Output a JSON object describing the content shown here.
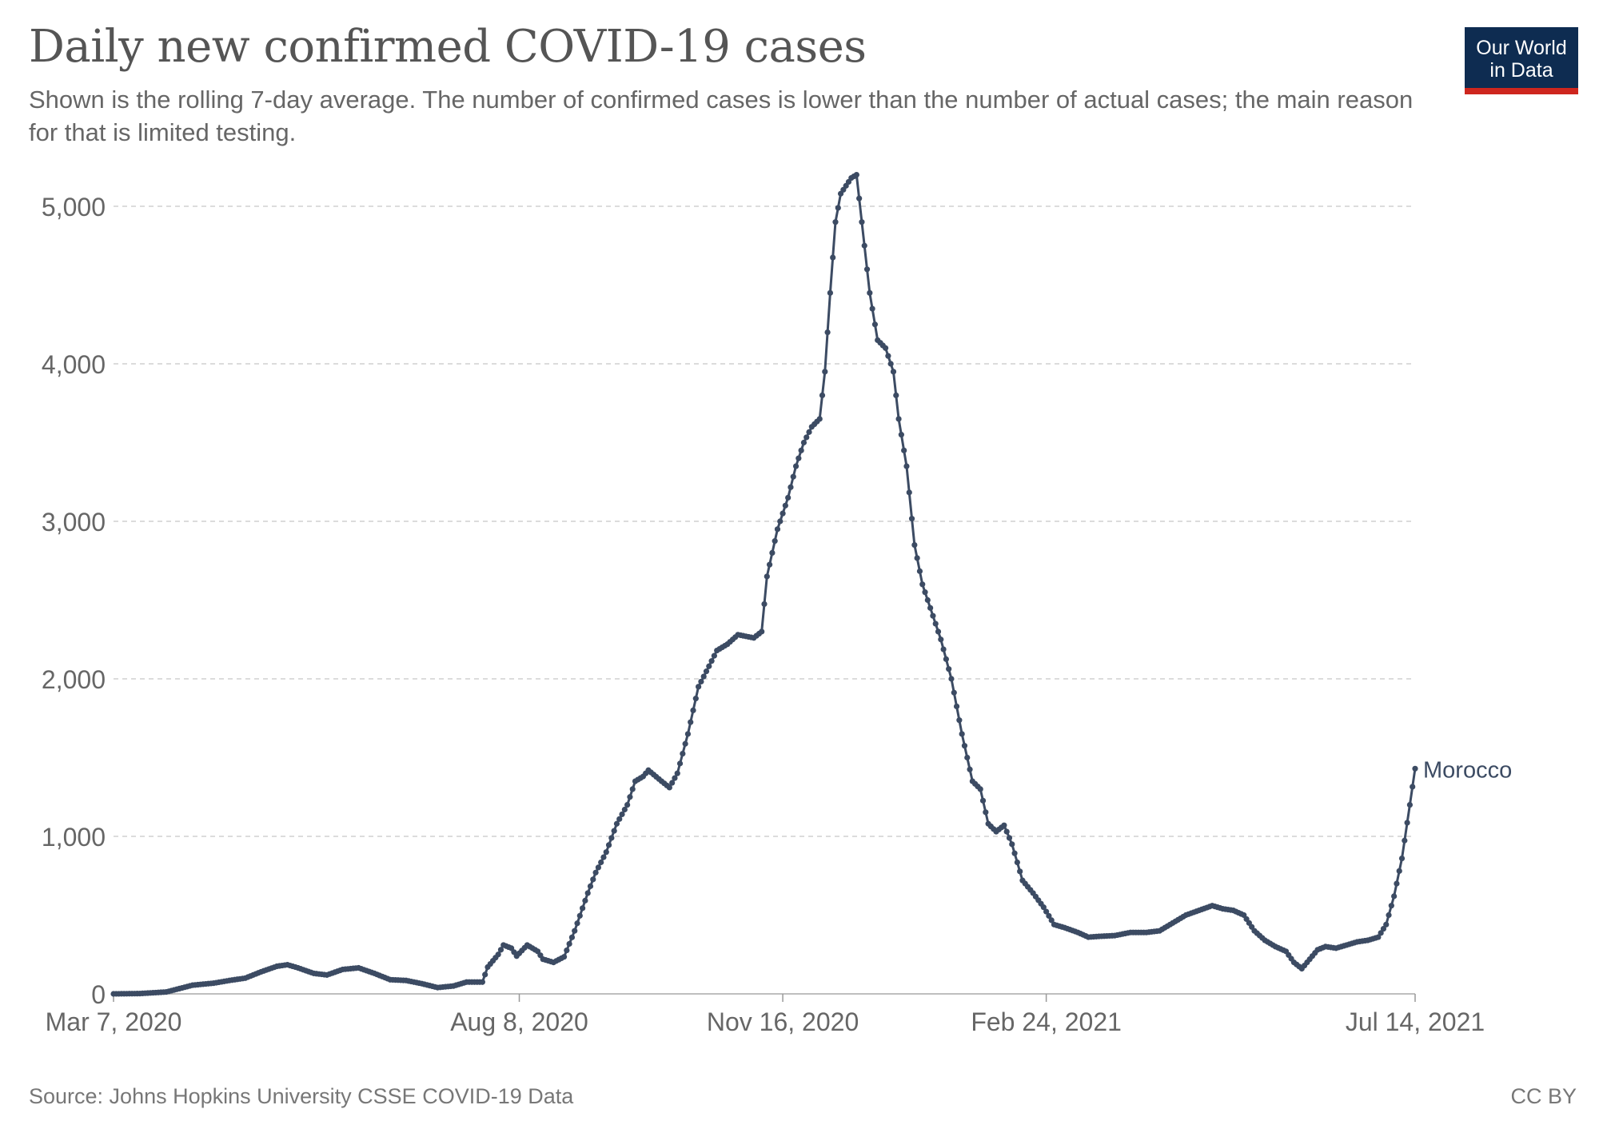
{
  "chart_data": {
    "type": "line",
    "title": "Daily new confirmed COVID-19 cases",
    "subtitle": "Shown is the rolling 7-day average. The number of confirmed cases is lower than the number of actual cases; the main reason for that is limited testing.",
    "source": "Source: Johns Hopkins University CSSE COVID-19 Data",
    "license": "CC BY",
    "logo": {
      "line1": "Our World",
      "line2": "in Data"
    },
    "x_start": "2020-03-07",
    "x_end": "2021-07-14",
    "x_ticks": [
      {
        "date": "2020-03-07",
        "label": "Mar 7, 2020"
      },
      {
        "date": "2020-08-08",
        "label": "Aug 8, 2020"
      },
      {
        "date": "2020-11-16",
        "label": "Nov 16, 2020"
      },
      {
        "date": "2021-02-24",
        "label": "Feb 24, 2021"
      },
      {
        "date": "2021-07-14",
        "label": "Jul 14, 2021"
      }
    ],
    "y_ticks": [
      {
        "value": 0,
        "label": "0"
      },
      {
        "value": 1000,
        "label": "1,000"
      },
      {
        "value": 2000,
        "label": "2,000"
      },
      {
        "value": 3000,
        "label": "3,000"
      },
      {
        "value": 4000,
        "label": "4,000"
      },
      {
        "value": 5000,
        "label": "5,000"
      }
    ],
    "ylim": [
      0,
      5200
    ],
    "grid": "horizontal dashed",
    "series": [
      {
        "name": "Morocco",
        "color": "#3c4b63",
        "points": [
          [
            "2020-03-07",
            0
          ],
          [
            "2020-03-17",
            2
          ],
          [
            "2020-03-27",
            12
          ],
          [
            "2020-04-06",
            55
          ],
          [
            "2020-04-14",
            68
          ],
          [
            "2020-04-20",
            85
          ],
          [
            "2020-04-26",
            100
          ],
          [
            "2020-05-02",
            140
          ],
          [
            "2020-05-08",
            175
          ],
          [
            "2020-05-12",
            185
          ],
          [
            "2020-05-16",
            165
          ],
          [
            "2020-05-22",
            130
          ],
          [
            "2020-05-27",
            120
          ],
          [
            "2020-06-02",
            155
          ],
          [
            "2020-06-08",
            165
          ],
          [
            "2020-06-14",
            130
          ],
          [
            "2020-06-20",
            90
          ],
          [
            "2020-06-26",
            85
          ],
          [
            "2020-07-02",
            65
          ],
          [
            "2020-07-08",
            40
          ],
          [
            "2020-07-14",
            50
          ],
          [
            "2020-07-19",
            75
          ],
          [
            "2020-07-25",
            75
          ],
          [
            "2020-07-27",
            170
          ],
          [
            "2020-07-31",
            250
          ],
          [
            "2020-08-02",
            310
          ],
          [
            "2020-08-05",
            290
          ],
          [
            "2020-08-07",
            240
          ],
          [
            "2020-08-11",
            310
          ],
          [
            "2020-08-15",
            270
          ],
          [
            "2020-08-17",
            220
          ],
          [
            "2020-08-21",
            200
          ],
          [
            "2020-08-25",
            235
          ],
          [
            "2020-08-29",
            400
          ],
          [
            "2020-09-03",
            640
          ],
          [
            "2020-09-06",
            770
          ],
          [
            "2020-09-10",
            900
          ],
          [
            "2020-09-14",
            1080
          ],
          [
            "2020-09-18",
            1200
          ],
          [
            "2020-09-21",
            1350
          ],
          [
            "2020-09-24",
            1380
          ],
          [
            "2020-09-26",
            1420
          ],
          [
            "2020-10-01",
            1350
          ],
          [
            "2020-10-04",
            1310
          ],
          [
            "2020-10-07",
            1400
          ],
          [
            "2020-10-11",
            1650
          ],
          [
            "2020-10-15",
            1950
          ],
          [
            "2020-10-19",
            2080
          ],
          [
            "2020-10-22",
            2180
          ],
          [
            "2020-10-26",
            2220
          ],
          [
            "2020-10-30",
            2280
          ],
          [
            "2020-11-02",
            2270
          ],
          [
            "2020-11-05",
            2260
          ],
          [
            "2020-11-08",
            2300
          ],
          [
            "2020-11-10",
            2650
          ],
          [
            "2020-11-14",
            2950
          ],
          [
            "2020-11-18",
            3150
          ],
          [
            "2020-11-21",
            3350
          ],
          [
            "2020-11-24",
            3500
          ],
          [
            "2020-11-27",
            3600
          ],
          [
            "2020-11-30",
            3650
          ],
          [
            "2020-12-02",
            3950
          ],
          [
            "2020-12-04",
            4450
          ],
          [
            "2020-12-06",
            4900
          ],
          [
            "2020-12-08",
            5080
          ],
          [
            "2020-12-10",
            5130
          ],
          [
            "2020-12-12",
            5180
          ],
          [
            "2020-12-14",
            5200
          ],
          [
            "2020-12-16",
            4900
          ],
          [
            "2020-12-19",
            4450
          ],
          [
            "2020-12-22",
            4150
          ],
          [
            "2020-12-25",
            4100
          ],
          [
            "2020-12-28",
            3950
          ],
          [
            "2020-12-30",
            3650
          ],
          [
            "2021-01-02",
            3350
          ],
          [
            "2021-01-05",
            2850
          ],
          [
            "2021-01-08",
            2600
          ],
          [
            "2021-01-11",
            2450
          ],
          [
            "2021-01-15",
            2250
          ],
          [
            "2021-01-19",
            2000
          ],
          [
            "2021-01-23",
            1650
          ],
          [
            "2021-01-27",
            1350
          ],
          [
            "2021-01-30",
            1300
          ],
          [
            "2021-02-02",
            1080
          ],
          [
            "2021-02-05",
            1030
          ],
          [
            "2021-02-08",
            1070
          ],
          [
            "2021-02-11",
            950
          ],
          [
            "2021-02-15",
            720
          ],
          [
            "2021-02-19",
            640
          ],
          [
            "2021-02-23",
            550
          ],
          [
            "2021-02-27",
            440
          ],
          [
            "2021-03-03",
            420
          ],
          [
            "2021-03-08",
            390
          ],
          [
            "2021-03-12",
            360
          ],
          [
            "2021-03-16",
            365
          ],
          [
            "2021-03-22",
            370
          ],
          [
            "2021-03-28",
            390
          ],
          [
            "2021-04-03",
            390
          ],
          [
            "2021-04-08",
            400
          ],
          [
            "2021-04-13",
            450
          ],
          [
            "2021-04-18",
            500
          ],
          [
            "2021-04-23",
            530
          ],
          [
            "2021-04-28",
            560
          ],
          [
            "2021-05-02",
            540
          ],
          [
            "2021-05-06",
            530
          ],
          [
            "2021-05-10",
            500
          ],
          [
            "2021-05-14",
            400
          ],
          [
            "2021-05-18",
            340
          ],
          [
            "2021-05-22",
            300
          ],
          [
            "2021-05-26",
            270
          ],
          [
            "2021-05-29",
            200
          ],
          [
            "2021-06-01",
            160
          ],
          [
            "2021-06-04",
            220
          ],
          [
            "2021-06-07",
            280
          ],
          [
            "2021-06-10",
            300
          ],
          [
            "2021-06-14",
            290
          ],
          [
            "2021-06-18",
            310
          ],
          [
            "2021-06-22",
            330
          ],
          [
            "2021-06-26",
            340
          ],
          [
            "2021-06-30",
            360
          ],
          [
            "2021-07-03",
            440
          ],
          [
            "2021-07-06",
            620
          ],
          [
            "2021-07-09",
            860
          ],
          [
            "2021-07-12",
            1200
          ],
          [
            "2021-07-14",
            1430
          ]
        ]
      }
    ]
  }
}
